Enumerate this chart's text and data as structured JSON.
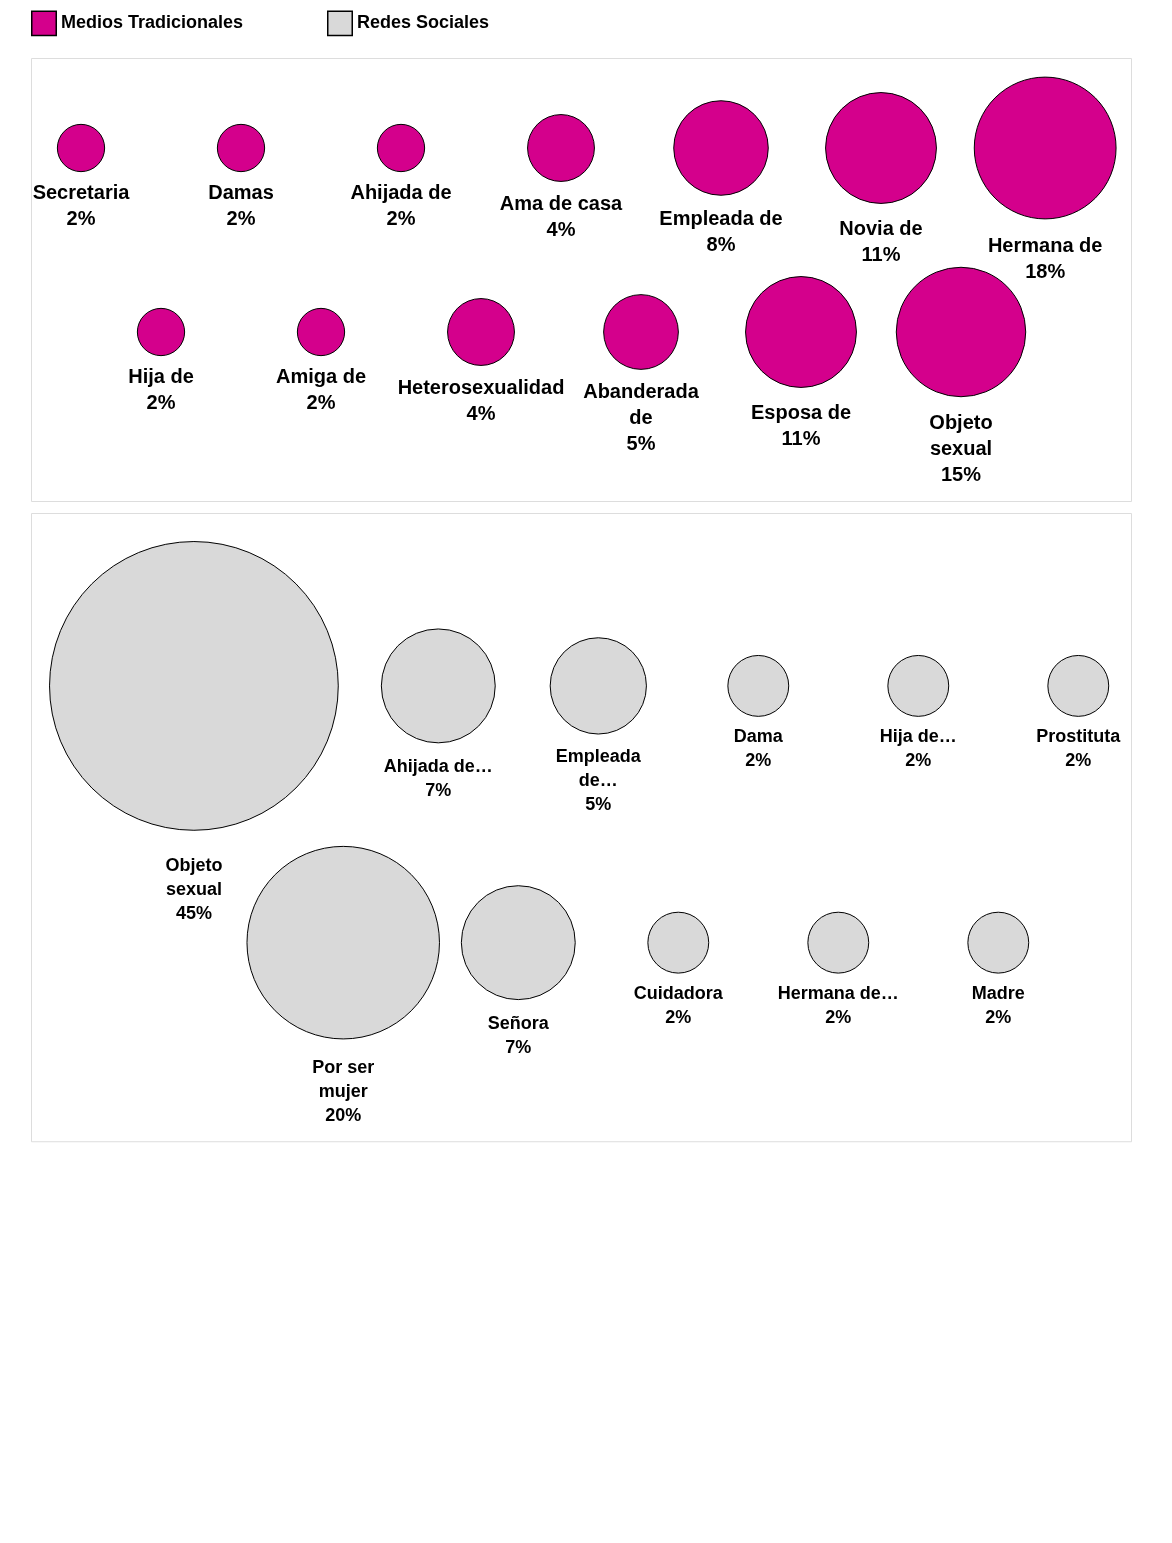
{
  "chart_data": [
    {
      "type": "other",
      "legend": "top",
      "categories": [
        "Secretaria",
        "Hija de",
        "Damas",
        "Amiga de",
        "Ahijada de",
        "Heterosexualidad",
        "Ama de casa",
        "Abanderada de",
        "Empleada de",
        "Esposa de",
        "Novia de",
        "Objeto sexual",
        "Hermana de"
      ],
      "series": [
        {
          "name": "Medios Tradicionales",
          "color": "#d4008c",
          "values": [
            2,
            2,
            2,
            2,
            2,
            4,
            4,
            5,
            8,
            11,
            11,
            15,
            18
          ],
          "value_labels": [
            "2%",
            "2%",
            "2%",
            "2%",
            "2%",
            "4%",
            "4%",
            "5%",
            "8%",
            "11%",
            "11%",
            "15%",
            "18%"
          ]
        }
      ]
    },
    {
      "type": "other",
      "categories": [
        "Objeto sexual",
        "Por ser mujer",
        "Ahijada de…",
        "Señora",
        "Empleada de…",
        "Cuidadora",
        "Dama",
        "Hermana de…",
        "Hija de…",
        "Madre",
        "Prostituta"
      ],
      "series": [
        {
          "name": "Redes Sociales",
          "color": "#d9d9d9",
          "values": [
            45,
            20,
            7,
            7,
            5,
            2,
            2,
            2,
            2,
            2,
            2
          ],
          "value_labels": [
            "45%",
            "20%",
            "7%",
            "7%",
            "5%",
            "2%",
            "2%",
            "2%",
            "2%",
            "2%",
            "2%"
          ]
        }
      ]
    }
  ]
}
